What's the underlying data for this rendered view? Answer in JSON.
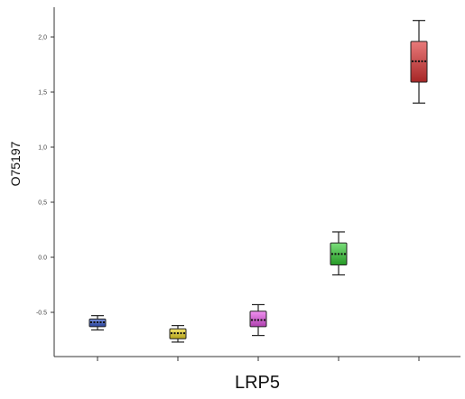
{
  "chart_data": {
    "type": "box",
    "title": "",
    "xlabel": "LRP5",
    "ylabel": "O75197",
    "ylim": [
      -0.92,
      2.25
    ],
    "yticks": [
      -0.5,
      0.0,
      0.5,
      1.0,
      1.5,
      2.0
    ],
    "ytick_labels": [
      "-0.5",
      "0.0",
      "0,5",
      "1,0",
      "1,5",
      "2,0"
    ],
    "xtick_labels": [
      "",
      "",
      "",
      "",
      ""
    ],
    "grid": false,
    "legend": "none",
    "boxes": [
      {
        "color": "#3355cc",
        "whisker_low": -0.66,
        "q1": -0.63,
        "median": -0.59,
        "q3": -0.56,
        "whisker_high": -0.53
      },
      {
        "color": "#f0d820",
        "whisker_low": -0.77,
        "q1": -0.74,
        "median": -0.69,
        "q3": -0.65,
        "whisker_high": -0.62
      },
      {
        "color": "#e855e8",
        "whisker_low": -0.71,
        "q1": -0.63,
        "median": -0.57,
        "q3": -0.49,
        "whisker_high": -0.43
      },
      {
        "color": "#33cc33",
        "whisker_low": -0.16,
        "q1": -0.07,
        "median": 0.03,
        "q3": 0.13,
        "whisker_high": 0.23
      },
      {
        "color": "#dd3333",
        "whisker_low": 1.4,
        "q1": 1.59,
        "median": 1.78,
        "q3": 1.96,
        "whisker_high": 2.15
      }
    ]
  }
}
